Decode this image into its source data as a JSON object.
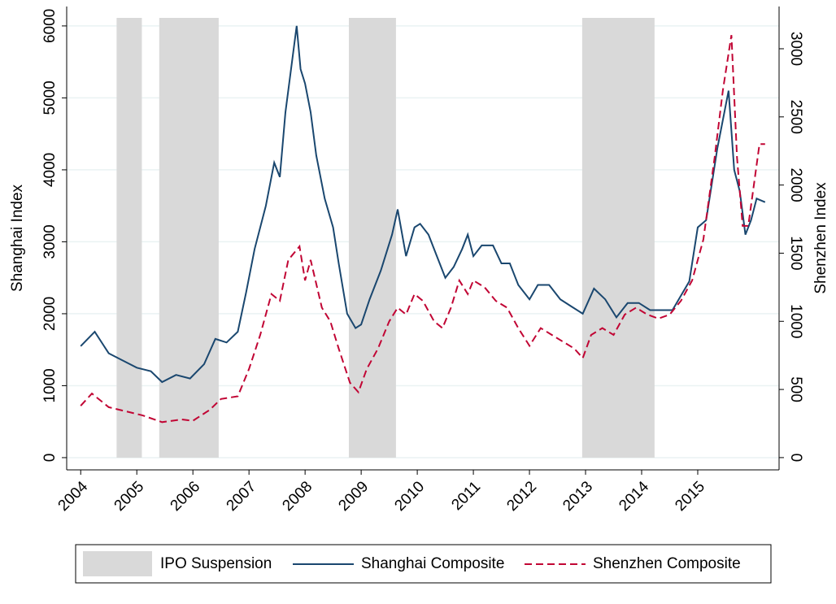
{
  "chart_data": {
    "type": "line",
    "y_label": "Shanghai Index",
    "y2_label": "Shenzhen Index",
    "xlim": [
      2003.75,
      2016.45
    ],
    "xticks": [
      2004,
      2005,
      2006,
      2007,
      2008,
      2009,
      2010,
      2011,
      2012,
      2013,
      2014,
      2015
    ],
    "ylim": [
      -170,
      6270
    ],
    "yticks": [
      0,
      1000,
      2000,
      3000,
      4000,
      5000,
      6000
    ],
    "y2lim": [
      -90,
      3310
    ],
    "y2ticks": [
      0,
      500,
      1000,
      1500,
      2000,
      2500,
      3000
    ],
    "grid": true,
    "shaded": {
      "name": "IPO Suspension",
      "color": "#d9d9d9",
      "periods": [
        [
          2004.64,
          2005.09
        ],
        [
          2005.4,
          2006.46
        ],
        [
          2008.78,
          2009.62
        ],
        [
          2012.94,
          2014.23
        ]
      ]
    },
    "series": [
      {
        "name": "Shanghai Composite",
        "color": "#1a476f",
        "axis": "y",
        "dash": false,
        "x": [
          2004.0,
          2004.25,
          2004.5,
          2004.75,
          2005.0,
          2005.25,
          2005.45,
          2005.7,
          2005.95,
          2006.2,
          2006.4,
          2006.6,
          2006.8,
          2006.95,
          2007.1,
          2007.3,
          2007.45,
          2007.55,
          2007.65,
          2007.85,
          2007.92,
          2008.0,
          2008.1,
          2008.2,
          2008.35,
          2008.5,
          2008.6,
          2008.75,
          2008.9,
          2009.0,
          2009.15,
          2009.35,
          2009.55,
          2009.65,
          2009.8,
          2009.95,
          2010.05,
          2010.2,
          2010.35,
          2010.5,
          2010.65,
          2010.8,
          2010.9,
          2011.0,
          2011.15,
          2011.35,
          2011.5,
          2011.65,
          2011.8,
          2012.0,
          2012.15,
          2012.35,
          2012.55,
          2012.75,
          2012.95,
          2013.15,
          2013.35,
          2013.55,
          2013.75,
          2013.95,
          2014.15,
          2014.35,
          2014.55,
          2014.7,
          2014.85,
          2015.0,
          2015.15,
          2015.35,
          2015.55,
          2015.65,
          2015.75,
          2015.85,
          2015.95,
          2016.05,
          2016.2
        ],
        "values": [
          1550,
          1750,
          1450,
          1350,
          1250,
          1200,
          1050,
          1150,
          1100,
          1300,
          1650,
          1600,
          1750,
          2300,
          2900,
          3500,
          4100,
          3900,
          4800,
          6000,
          5400,
          5200,
          4800,
          4200,
          3600,
          3200,
          2700,
          2000,
          1800,
          1850,
          2200,
          2600,
          3100,
          3450,
          2800,
          3200,
          3250,
          3100,
          2800,
          2500,
          2650,
          2900,
          3100,
          2800,
          2950,
          2950,
          2700,
          2700,
          2400,
          2200,
          2400,
          2400,
          2200,
          2100,
          2000,
          2350,
          2200,
          1950,
          2150,
          2150,
          2050,
          2050,
          2050,
          2250,
          2450,
          3200,
          3300,
          4300,
          5100,
          4000,
          3700,
          3100,
          3300,
          3600,
          3550
        ]
      },
      {
        "name": "Shenzhen Composite",
        "color": "#c10534",
        "axis": "y2",
        "dash": true,
        "x": [
          2004.0,
          2004.2,
          2004.5,
          2004.8,
          2005.1,
          2005.45,
          2005.8,
          2006.0,
          2006.3,
          2006.5,
          2006.8,
          2007.0,
          2007.2,
          2007.4,
          2007.55,
          2007.7,
          2007.9,
          2008.0,
          2008.1,
          2008.3,
          2008.45,
          2008.6,
          2008.8,
          2008.95,
          2009.1,
          2009.3,
          2009.5,
          2009.65,
          2009.8,
          2009.95,
          2010.1,
          2010.3,
          2010.45,
          2010.6,
          2010.75,
          2010.9,
          2011.0,
          2011.2,
          2011.4,
          2011.6,
          2011.8,
          2012.0,
          2012.2,
          2012.4,
          2012.6,
          2012.8,
          2012.95,
          2013.1,
          2013.3,
          2013.5,
          2013.7,
          2013.9,
          2014.1,
          2014.3,
          2014.5,
          2014.7,
          2014.9,
          2015.1,
          2015.3,
          2015.45,
          2015.6,
          2015.7,
          2015.8,
          2015.9,
          2016.0,
          2016.1,
          2016.2
        ],
        "values": [
          380,
          470,
          370,
          340,
          310,
          260,
          280,
          270,
          350,
          430,
          450,
          650,
          900,
          1200,
          1150,
          1450,
          1550,
          1300,
          1450,
          1100,
          1000,
          800,
          550,
          480,
          650,
          800,
          1000,
          1100,
          1050,
          1200,
          1150,
          1000,
          950,
          1100,
          1300,
          1200,
          1300,
          1250,
          1150,
          1100,
          950,
          820,
          950,
          900,
          850,
          800,
          730,
          900,
          950,
          900,
          1050,
          1100,
          1050,
          1020,
          1050,
          1150,
          1300,
          1600,
          2200,
          2700,
          3100,
          2200,
          1700,
          1700,
          2000,
          2300,
          2300
        ]
      }
    ]
  }
}
